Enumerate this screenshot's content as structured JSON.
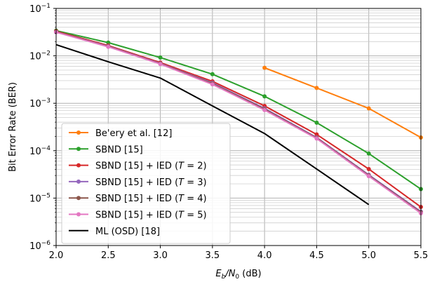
{
  "chart_data": {
    "type": "line",
    "title": "",
    "xlabel_main": "E",
    "xlabel_sub1": "b",
    "xlabel_mid": "/N",
    "xlabel_sub2": "0",
    "xlabel_unit": " (dB)",
    "ylabel": "Bit Error Rate (BER)",
    "xlim": [
      2.0,
      5.5
    ],
    "ylim": [
      1e-06,
      0.1
    ],
    "yscale": "log",
    "grid": true,
    "legend_position": "lower-left",
    "x_ticks": [
      "2.0",
      "2.5",
      "3.0",
      "3.5",
      "4.0",
      "4.5",
      "5.0",
      "5.5"
    ],
    "x_tick_values": [
      2.0,
      2.5,
      3.0,
      3.5,
      4.0,
      4.5,
      5.0,
      5.5
    ],
    "y_ticks": [
      {
        "value": 1e-06,
        "base": "10",
        "exp": "−6"
      },
      {
        "value": 1e-05,
        "base": "10",
        "exp": "−5"
      },
      {
        "value": 0.0001,
        "base": "10",
        "exp": "−4"
      },
      {
        "value": 0.001,
        "base": "10",
        "exp": "−3"
      },
      {
        "value": 0.01,
        "base": "10",
        "exp": "−2"
      },
      {
        "value": 0.1,
        "base": "10",
        "exp": "−1"
      }
    ],
    "series": [
      {
        "name": "Be'ery et al. [12]",
        "legend_prefix": "Be'ery et al. [12]",
        "legend_italic": "",
        "legend_suffix": "",
        "color": "#ff7f0e",
        "marker": true,
        "x": [
          4.0,
          4.5,
          5.0,
          5.5
        ],
        "y": [
          0.0056,
          0.0021,
          0.00078,
          0.00019
        ]
      },
      {
        "name": "SBND [15]",
        "legend_prefix": "SBND [15]",
        "legend_italic": "",
        "legend_suffix": "",
        "color": "#2ca02c",
        "marker": true,
        "x": [
          2.0,
          2.5,
          3.0,
          3.5,
          4.0,
          4.5,
          5.0,
          5.5
        ],
        "y": [
          0.034,
          0.019,
          0.0092,
          0.0041,
          0.0014,
          0.00039,
          8.7e-05,
          1.55e-05
        ]
      },
      {
        "name": "SBND [15] + IED (T = 2)",
        "legend_prefix": "SBND [15] + IED (",
        "legend_italic": "T",
        "legend_suffix": " = 2)",
        "color": "#d62728",
        "marker": true,
        "x": [
          2.0,
          2.5,
          3.0,
          3.5,
          4.0,
          4.5,
          5.0,
          5.5
        ],
        "y": [
          0.033,
          0.0165,
          0.0072,
          0.0029,
          0.00088,
          0.00022,
          4.1e-05,
          6.5e-06
        ]
      },
      {
        "name": "SBND [15] + IED (T = 3)",
        "legend_prefix": "SBND [15] + IED (",
        "legend_italic": "T",
        "legend_suffix": " = 3)",
        "color": "#9467bd",
        "marker": true,
        "x": [
          2.0,
          2.5,
          3.0,
          3.5,
          4.0,
          4.5,
          5.0,
          5.5
        ],
        "y": [
          0.032,
          0.016,
          0.0069,
          0.0027,
          0.00078,
          0.00019,
          3.1e-05,
          5.2e-06
        ]
      },
      {
        "name": "SBND [15] + IED (T = 4)",
        "legend_prefix": "SBND [15] + IED (",
        "legend_italic": "T",
        "legend_suffix": " = 4)",
        "color": "#8c564b",
        "marker": true,
        "x": [
          2.0,
          2.5,
          3.0,
          3.5,
          4.0,
          4.5,
          5.0,
          5.5
        ],
        "y": [
          0.032,
          0.0158,
          0.0068,
          0.0026,
          0.00075,
          0.000185,
          3e-05,
          5e-06
        ]
      },
      {
        "name": "SBND [15] + IED (T = 5)",
        "legend_prefix": "SBND [15] + IED (",
        "legend_italic": "T",
        "legend_suffix": " = 5)",
        "color": "#e377c2",
        "marker": true,
        "x": [
          2.0,
          2.5,
          3.0,
          3.5,
          4.0,
          4.5,
          5.0,
          5.5
        ],
        "y": [
          0.0315,
          0.0155,
          0.0067,
          0.0025,
          0.00072,
          0.00018,
          2.9e-05,
          4.8e-06
        ]
      },
      {
        "name": "ML (OSD) [18]",
        "legend_prefix": "ML (OSD) [18]",
        "legend_italic": "",
        "legend_suffix": "",
        "color": "#000000",
        "marker": false,
        "x": [
          2.0,
          2.5,
          3.0,
          3.5,
          4.0,
          4.5,
          5.0
        ],
        "y": [
          0.0172,
          0.0075,
          0.0034,
          0.00088,
          0.00023,
          4.1e-05,
          7.3e-06
        ]
      }
    ]
  }
}
